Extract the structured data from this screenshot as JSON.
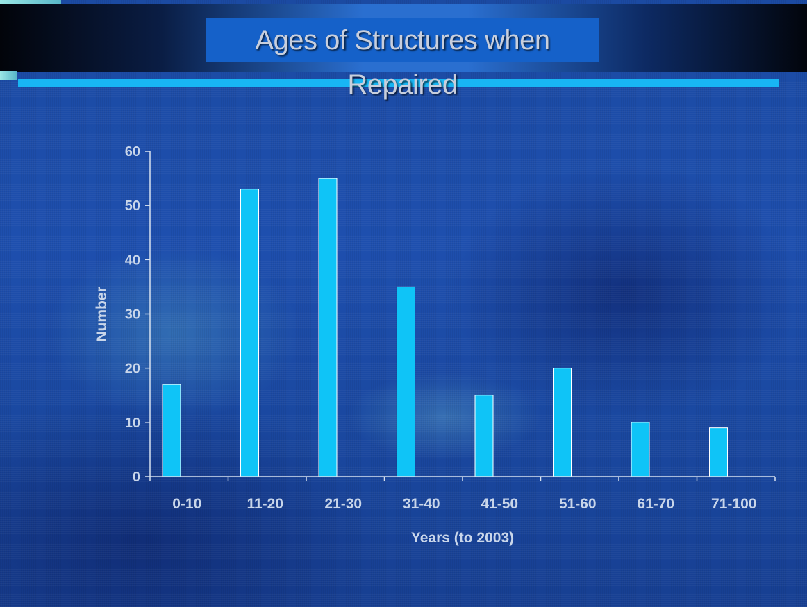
{
  "slide": {
    "title": "Ages of Structures when Repaired"
  },
  "colors": {
    "bar": "#0fc4f7",
    "axis": "#d8e2f0",
    "title_box": "#1561c9",
    "accent_line": "#18b6f4"
  },
  "chart_data": {
    "type": "bar",
    "title": "",
    "xlabel": "Years (to 2003)",
    "ylabel": "Number",
    "categories": [
      "0-10",
      "11-20",
      "21-30",
      "31-40",
      "41-50",
      "51-60",
      "61-70",
      "71-100"
    ],
    "values": [
      17,
      53,
      55,
      35,
      15,
      20,
      10,
      9
    ],
    "ylim": [
      0,
      60
    ],
    "yticks": [
      0,
      10,
      20,
      30,
      40,
      50,
      60
    ],
    "grid": false,
    "legend": "none"
  }
}
